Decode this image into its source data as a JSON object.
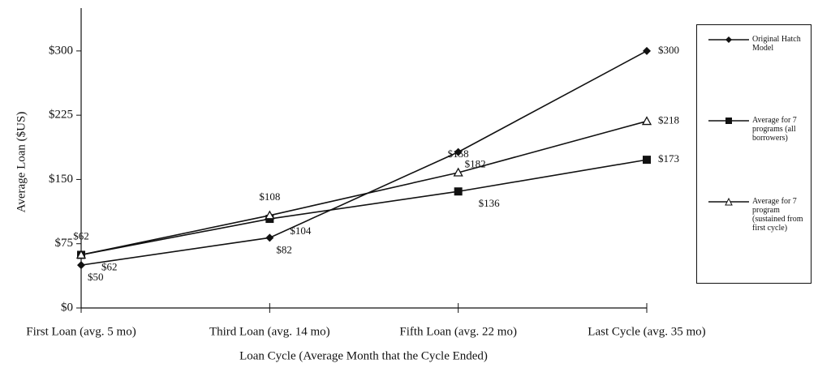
{
  "chart_data": {
    "type": "line",
    "y_label": "Average Loan ($US)",
    "x_label": "Loan Cycle (Average Month that the Cycle Ended)",
    "categories": [
      "First Loan (avg. 5 mo)",
      "Third Loan (avg. 14 mo)",
      "Fifth Loan (avg. 22 mo)",
      "Last Cycle (avg. 35 mo)"
    ],
    "ylim": [
      0,
      350
    ],
    "yticks": [
      {
        "value": 0,
        "label": "$0"
      },
      {
        "value": 75,
        "label": "$75"
      },
      {
        "value": 150,
        "label": "$150"
      },
      {
        "value": 225,
        "label": "$225"
      },
      {
        "value": 300,
        "label": "$300"
      }
    ],
    "legend": "right",
    "series": [
      {
        "name": "Original Hatch Model",
        "color": "#111111",
        "marker": "diamond",
        "values": [
          50,
          82,
          182,
          300
        ],
        "value_labels": [
          "$50",
          "$82",
          "$182",
          "$300"
        ]
      },
      {
        "name": "Average for 7 programs (all borrowers)",
        "color": "#111111",
        "marker": "square",
        "values": [
          62,
          104,
          136,
          173
        ],
        "value_labels": [
          "$62",
          "$104",
          "$136",
          "$173"
        ]
      },
      {
        "name": "Average for 7 program (sustained from first cycle)",
        "color": "#111111",
        "marker": "triangle",
        "values": [
          62,
          108,
          158,
          218
        ],
        "value_labels": [
          "$62",
          "$108",
          "$158",
          "$218"
        ]
      }
    ]
  }
}
